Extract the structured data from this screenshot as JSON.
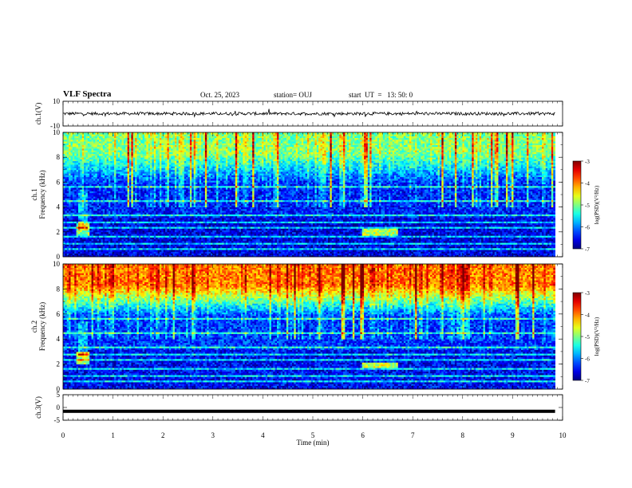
{
  "header": {
    "title": "VLF Spectra",
    "date": "Oct. 25, 2023",
    "station": "station= OUJ",
    "start": "start  UT  =   13: 50: 0"
  },
  "chart_data": [
    {
      "type": "line",
      "panel": "ch1-waveform",
      "ylabel": "ch.1(V)",
      "ylim": [
        -10,
        10
      ],
      "y_ticks": [
        "10",
        "-10"
      ],
      "x": [
        0,
        10
      ],
      "baseline": 0,
      "noise_amplitude_v": 1.2,
      "color": "#000000"
    },
    {
      "type": "heatmap",
      "panel": "ch1-spectrogram",
      "ylabel": "ch.1\nFrequency (kHz)",
      "ylim": [
        0,
        10
      ],
      "y_ticks": [
        "0",
        "2",
        "4",
        "6",
        "8",
        "10"
      ],
      "xlim": [
        0,
        10
      ],
      "colorbar_label": "log(PSD)(V²/Hz)",
      "colorbar_range": [
        -7,
        -3
      ],
      "colorbar_ticks": [
        "-3",
        "-4",
        "-5",
        "-6",
        "-7"
      ],
      "background_level": -6.4,
      "upper_band_level": -5.0,
      "features": [
        {
          "t": 0.4,
          "f": 2.2,
          "note": "bright spot"
        },
        {
          "t_range": [
            6.0,
            6.7
          ],
          "f": 2.0,
          "note": "emission patch"
        }
      ]
    },
    {
      "type": "heatmap",
      "panel": "ch2-spectrogram",
      "ylabel": "ch.2\nFrequency (kHz)",
      "ylim": [
        0,
        10
      ],
      "y_ticks": [
        "0",
        "2",
        "4",
        "6",
        "8",
        "10"
      ],
      "xlim": [
        0,
        10
      ],
      "colorbar_label": "log(PSD)(V²/Hz)",
      "colorbar_range": [
        -7,
        -3
      ],
      "colorbar_ticks": [
        "-3",
        "-4",
        "-5",
        "-6",
        "-7"
      ],
      "background_level": -6.3,
      "upper_band_level": -4.0,
      "features": [
        {
          "t": 0.4,
          "f": 2.5,
          "note": "bright spot"
        },
        {
          "t_range": [
            6.0,
            6.7
          ],
          "f": 1.9,
          "note": "emission patch"
        }
      ]
    },
    {
      "type": "line",
      "panel": "ch3-waveform",
      "ylabel": "ch.3(V)",
      "ylim": [
        -5,
        5
      ],
      "y_ticks": [
        "5",
        "0",
        "-5"
      ],
      "x": [
        0,
        10
      ],
      "baseline": -1.5,
      "noise_amplitude_v": 0.3,
      "color": "#000000"
    }
  ],
  "x_axis": {
    "label": "Time (min)",
    "ticks": [
      "0",
      "1",
      "2",
      "3",
      "4",
      "5",
      "6",
      "7",
      "8",
      "9",
      "10"
    ],
    "data_end": 9.85
  }
}
